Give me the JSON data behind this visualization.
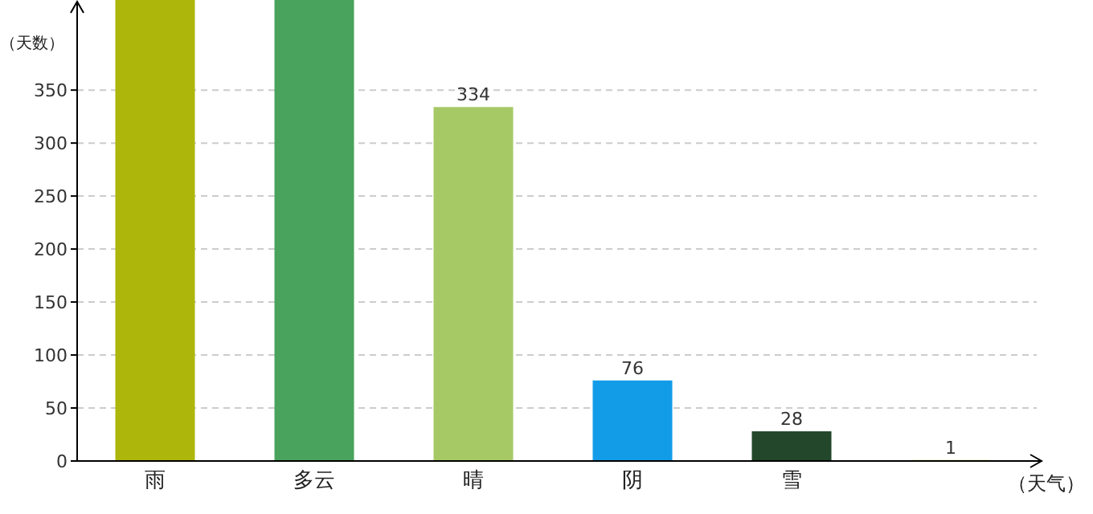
{
  "chart_data": {
    "type": "bar",
    "xlabel": "（天气）",
    "ylabel": "（天数）",
    "categories": [
      "雨",
      "多云",
      "晴",
      "阴",
      "雪",
      null
    ],
    "values": [
      435,
      435,
      334,
      76,
      28,
      1
    ],
    "value_labels": [
      null,
      null,
      "334",
      "76",
      "28",
      "1"
    ],
    "colors": [
      "#adb60a",
      "#4aa35c",
      "#a6c966",
      "#129ce8",
      "#22472a",
      "#c9d46a"
    ],
    "ylim": [
      0,
      435
    ],
    "yticks": [
      0,
      50,
      100,
      150,
      200,
      250,
      300,
      350
    ],
    "grid": "y"
  }
}
